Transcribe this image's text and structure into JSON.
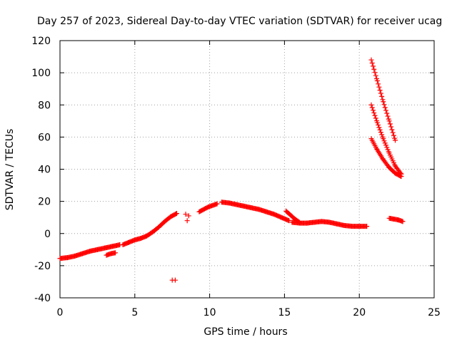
{
  "chart_data": {
    "type": "scatter",
    "title": "Day 257 of 2023, Sidereal Day-to-day VTEC variation (SDTVAR) for receiver ucag",
    "xlabel": "GPS time / hours",
    "ylabel": "SDTVAR / TECUs",
    "xlim": [
      0,
      25
    ],
    "ylim": [
      -40,
      120
    ],
    "xticks": [
      0,
      5,
      10,
      15,
      20,
      25
    ],
    "yticks": [
      -40,
      -20,
      0,
      20,
      40,
      60,
      80,
      100,
      120
    ],
    "grid": true,
    "marker": "+",
    "color": "#ff0000",
    "series": [
      {
        "name": "main-track-a",
        "x": [
          0.0,
          0.5,
          1.0,
          1.5,
          2.0,
          2.5,
          3.0,
          3.5,
          4.0
        ],
        "y": [
          -15.5,
          -15.0,
          -14.0,
          -12.5,
          -11.0,
          -10.0,
          -9.0,
          -8.0,
          -7.0
        ]
      },
      {
        "name": "main-track-b",
        "x": [
          4.2,
          4.6,
          5.0,
          5.4,
          5.8,
          6.2,
          6.6,
          7.0,
          7.4,
          7.8
        ],
        "y": [
          -7.0,
          -5.5,
          -4.0,
          -3.0,
          -1.5,
          1.0,
          4.0,
          7.5,
          10.5,
          12.5
        ]
      },
      {
        "name": "main-track-c",
        "x": [
          9.3,
          9.6,
          9.9,
          10.2,
          10.5
        ],
        "y": [
          13.5,
          15.0,
          16.5,
          17.5,
          18.5
        ]
      },
      {
        "name": "main-track-d",
        "x": [
          10.8,
          11.3,
          11.8,
          12.3,
          12.8,
          13.3,
          13.8,
          14.3,
          14.8,
          15.3
        ],
        "y": [
          19.5,
          19.0,
          18.0,
          17.0,
          16.0,
          15.0,
          13.5,
          12.0,
          10.0,
          8.0
        ]
      },
      {
        "name": "main-track-e",
        "x": [
          15.5,
          16.0,
          16.5,
          17.0,
          17.5,
          18.0,
          18.5,
          19.0,
          19.5,
          20.0,
          20.5
        ],
        "y": [
          7.0,
          6.5,
          6.5,
          7.0,
          7.5,
          7.0,
          6.0,
          5.0,
          4.5,
          4.5,
          4.5
        ]
      },
      {
        "name": "rising-pass-1",
        "x": [
          3.1,
          3.4,
          3.7
        ],
        "y": [
          -13.5,
          -12.5,
          -12.0
        ]
      },
      {
        "name": "rising-pass-2",
        "x": [
          15.1,
          15.4,
          15.7,
          16.0
        ],
        "y": [
          14.0,
          11.5,
          9.0,
          7.0
        ]
      },
      {
        "name": "late-pass-1",
        "x": [
          20.8,
          21.2,
          21.6,
          22.0,
          22.4
        ],
        "y": [
          108.0,
          95.0,
          82.0,
          70.0,
          58.0
        ]
      },
      {
        "name": "late-pass-2",
        "x": [
          20.8,
          21.2,
          21.6,
          22.0,
          22.4,
          22.8
        ],
        "y": [
          80.0,
          69.0,
          59.0,
          50.0,
          42.0,
          37.0
        ]
      },
      {
        "name": "late-pass-3",
        "x": [
          20.8,
          21.2,
          21.6,
          22.0,
          22.4,
          22.8
        ],
        "y": [
          59.0,
          52.0,
          46.0,
          41.0,
          37.5,
          35.5
        ]
      },
      {
        "name": "late-tail",
        "x": [
          22.0,
          22.3,
          22.6,
          22.9
        ],
        "y": [
          9.5,
          9.0,
          8.5,
          7.5
        ]
      },
      {
        "name": "isolated",
        "x": [
          7.5,
          7.7,
          8.4,
          8.6,
          8.5
        ],
        "y": [
          -29.0,
          -29.0,
          12.0,
          11.0,
          8.0
        ]
      }
    ]
  }
}
